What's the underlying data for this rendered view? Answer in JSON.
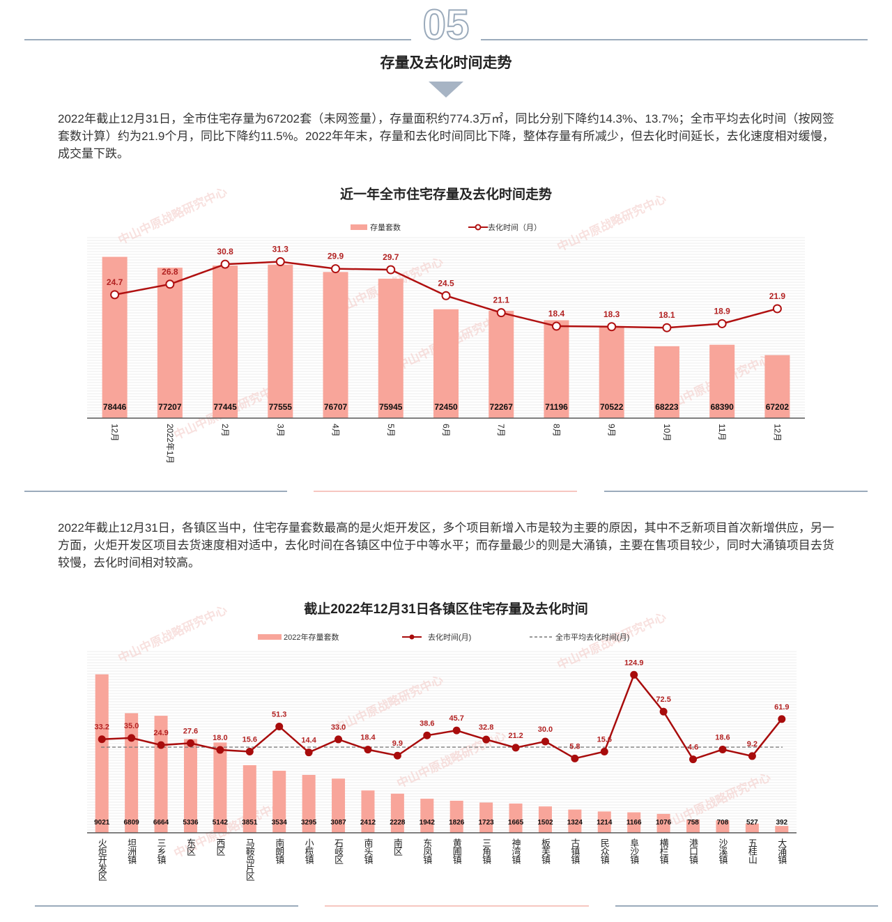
{
  "header": {
    "number": "05",
    "title": "存量及去化时间走势"
  },
  "paragraphs": [
    "2022年截止12月31日，全市住宅存量为67202套（未网签量），存量面积约774.3万㎡，同比分别下降约14.3%、13.7%；全市平均去化时间（按网签套数计算）约为21.9个月，同比下降约11.5%。2022年年末，存量和去化时间同比下降，整体存量有所减少，但去化时间延长，去化速度相对缓慢，成交量下跌。",
    "2022年截止12月31日，各镇区当中，住宅存量套数最高的是火炬开发区，多个项目新增入市是较为主要的原因，其中不乏新项目首次新增供应，另一方面，火炬开发区项目去货速度相对适中，去化时间在各镇区中位于中等水平；而存量最少的则是大涌镇，主要在售项目较少，同时大涌镇项目去货较慢，去化时间相对较高。"
  ],
  "watermark": "中山中原战略研究中心",
  "chart_data": [
    {
      "type": "bar",
      "title": "近一年全市住宅存量及去化时间走势",
      "categories": [
        "12月",
        "2022年1月",
        "2月",
        "3月",
        "4月",
        "5月",
        "6月",
        "7月",
        "8月",
        "9月",
        "10月",
        "11月",
        "12月"
      ],
      "series": [
        {
          "name": "存量套数",
          "color": "#f8a59a",
          "values": [
            78446,
            77207,
            77445,
            77555,
            76707,
            75945,
            72450,
            72267,
            71196,
            70522,
            68223,
            68390,
            67202
          ]
        },
        {
          "name": "去化时间（月）",
          "color": "#b01010",
          "axis": "y2",
          "marker": "hollow",
          "values": [
            24.7,
            26.8,
            30.8,
            31.3,
            29.9,
            29.7,
            24.5,
            21.1,
            18.4,
            18.3,
            18.1,
            18.9,
            21.9
          ]
        }
      ],
      "ylim": [
        60000,
        80000
      ],
      "y2lim": [
        0,
        35
      ]
    },
    {
      "type": "bar",
      "title": "截止2022年12月31日各镇区住宅存量及去化时间",
      "categories": [
        "火炬开发区",
        "坦洲镇",
        "三乡镇",
        "东区",
        "西区",
        "马鞍岛片区",
        "南朗镇",
        "小榄镇",
        "石岐区",
        "南头镇",
        "南区",
        "东凤镇",
        "黄圃镇",
        "三角镇",
        "神湾镇",
        "板芙镇",
        "古镇镇",
        "民众镇",
        "阜沙镇",
        "横栏镇",
        "港口镇",
        "沙溪镇",
        "五桂山",
        "大涌镇"
      ],
      "series": [
        {
          "name": "2022年存量套数",
          "color": "#f8a59a",
          "values": [
            9021,
            6809,
            6664,
            5336,
            5142,
            3851,
            3534,
            3295,
            3087,
            2412,
            2228,
            1942,
            1826,
            1723,
            1665,
            1502,
            1324,
            1214,
            1166,
            1076,
            758,
            708,
            527,
            392
          ]
        },
        {
          "name": "去化时间(月)",
          "color": "#a80c0c",
          "axis": "y2",
          "marker": "filled",
          "values": [
            33.2,
            35.0,
            24.9,
            27.6,
            18.0,
            15.6,
            51.3,
            14.4,
            33.0,
            18.4,
            9.9,
            38.6,
            45.7,
            32.8,
            21.2,
            30.0,
            5.8,
            15.6,
            124.9,
            72.5,
            4.6,
            18.6,
            9.2,
            61.9
          ],
          "value_labels": [
            "33.2",
            "35.0",
            "24.9",
            "27.6",
            "18.0",
            "15.6",
            "51.3",
            "14.4",
            "33.0",
            "18.4",
            "9.9",
            "38.6",
            "45.7",
            "32.8",
            "21.2",
            "30.0",
            "5.8",
            "15.6",
            "124.9",
            "72.5",
            "4.6",
            "18.6",
            "9.2",
            "61.9"
          ]
        }
      ],
      "reference_line": {
        "name": "全市平均去化时间(月)",
        "value": 21.9,
        "color": "#777777",
        "axis": "y2"
      },
      "ylim": [
        0,
        10000
      ],
      "y2lim": [
        -100,
        150
      ]
    }
  ]
}
